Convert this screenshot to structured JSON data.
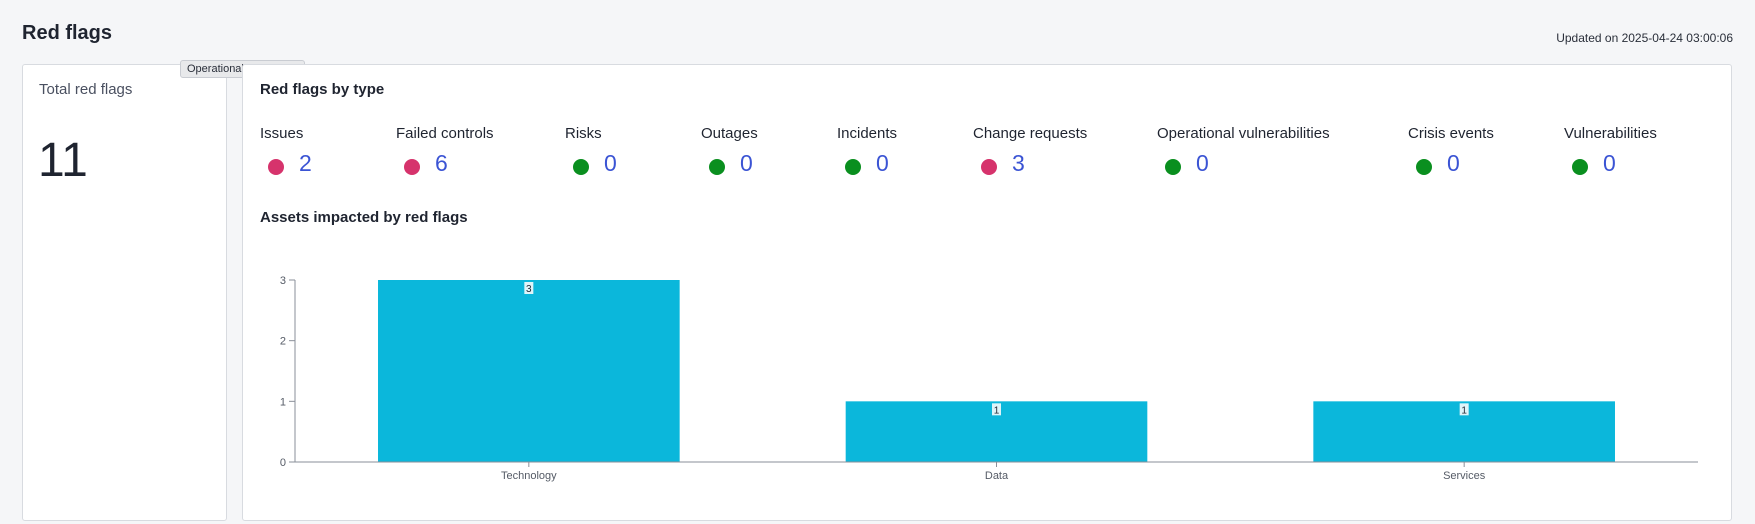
{
  "header": {
    "title": "Red flags",
    "updated": "Updated on 2025-04-24 03:00:06"
  },
  "tooltip": "Operational Resilience",
  "total": {
    "label": "Total red flags",
    "value": "11"
  },
  "by_type": {
    "title": "Red flags by type",
    "items": [
      {
        "label": "Issues",
        "count": "2",
        "status": "red"
      },
      {
        "label": "Failed controls",
        "count": "6",
        "status": "red"
      },
      {
        "label": "Risks",
        "count": "0",
        "status": "green"
      },
      {
        "label": "Outages",
        "count": "0",
        "status": "green"
      },
      {
        "label": "Incidents",
        "count": "0",
        "status": "green"
      },
      {
        "label": "Change requests",
        "count": "3",
        "status": "red"
      },
      {
        "label": "Operational vulnerabilities",
        "count": "0",
        "status": "green"
      },
      {
        "label": "Crisis events",
        "count": "0",
        "status": "green"
      },
      {
        "label": "Vulnerabilities",
        "count": "0",
        "status": "green"
      }
    ]
  },
  "colors": {
    "red": "#d6336c",
    "green": "#0a8f1f",
    "bar": "#0bb7db",
    "count_link": "#3b54d4"
  },
  "assets": {
    "title": "Assets impacted by red flags"
  },
  "chart_data": {
    "type": "bar",
    "categories": [
      "Technology",
      "Data",
      "Services"
    ],
    "values": [
      3,
      1,
      1
    ],
    "ylim": [
      0,
      3
    ],
    "yticks": [
      0,
      1,
      2,
      3
    ],
    "title": "",
    "xlabel": "",
    "ylabel": "",
    "data_labels": true
  }
}
